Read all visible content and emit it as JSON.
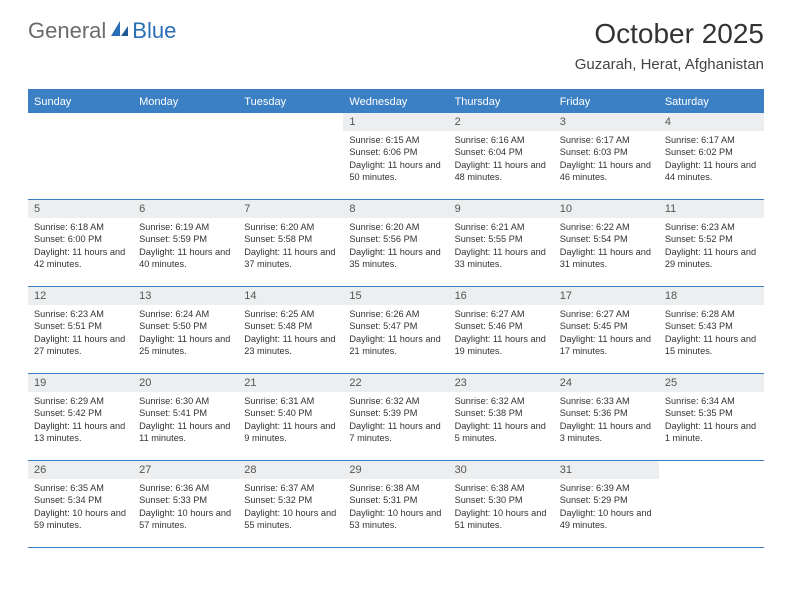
{
  "logo": {
    "text1": "General",
    "text2": "Blue"
  },
  "title": "October 2025",
  "location": "Guzarah, Herat, Afghanistan",
  "colors": {
    "header_bar": "#3b7fc4",
    "daynum_bg": "#eceeef",
    "text": "#333333",
    "logo_gray": "#6b6b6b",
    "logo_blue": "#2a6fb5"
  },
  "weekdays": [
    "Sunday",
    "Monday",
    "Tuesday",
    "Wednesday",
    "Thursday",
    "Friday",
    "Saturday"
  ],
  "weeks": [
    [
      {
        "empty": true
      },
      {
        "empty": true
      },
      {
        "empty": true
      },
      {
        "num": "1",
        "sunrise": "6:15 AM",
        "sunset": "6:06 PM",
        "daylight": "11 hours and 50 minutes."
      },
      {
        "num": "2",
        "sunrise": "6:16 AM",
        "sunset": "6:04 PM",
        "daylight": "11 hours and 48 minutes."
      },
      {
        "num": "3",
        "sunrise": "6:17 AM",
        "sunset": "6:03 PM",
        "daylight": "11 hours and 46 minutes."
      },
      {
        "num": "4",
        "sunrise": "6:17 AM",
        "sunset": "6:02 PM",
        "daylight": "11 hours and 44 minutes."
      }
    ],
    [
      {
        "num": "5",
        "sunrise": "6:18 AM",
        "sunset": "6:00 PM",
        "daylight": "11 hours and 42 minutes."
      },
      {
        "num": "6",
        "sunrise": "6:19 AM",
        "sunset": "5:59 PM",
        "daylight": "11 hours and 40 minutes."
      },
      {
        "num": "7",
        "sunrise": "6:20 AM",
        "sunset": "5:58 PM",
        "daylight": "11 hours and 37 minutes."
      },
      {
        "num": "8",
        "sunrise": "6:20 AM",
        "sunset": "5:56 PM",
        "daylight": "11 hours and 35 minutes."
      },
      {
        "num": "9",
        "sunrise": "6:21 AM",
        "sunset": "5:55 PM",
        "daylight": "11 hours and 33 minutes."
      },
      {
        "num": "10",
        "sunrise": "6:22 AM",
        "sunset": "5:54 PM",
        "daylight": "11 hours and 31 minutes."
      },
      {
        "num": "11",
        "sunrise": "6:23 AM",
        "sunset": "5:52 PM",
        "daylight": "11 hours and 29 minutes."
      }
    ],
    [
      {
        "num": "12",
        "sunrise": "6:23 AM",
        "sunset": "5:51 PM",
        "daylight": "11 hours and 27 minutes."
      },
      {
        "num": "13",
        "sunrise": "6:24 AM",
        "sunset": "5:50 PM",
        "daylight": "11 hours and 25 minutes."
      },
      {
        "num": "14",
        "sunrise": "6:25 AM",
        "sunset": "5:48 PM",
        "daylight": "11 hours and 23 minutes."
      },
      {
        "num": "15",
        "sunrise": "6:26 AM",
        "sunset": "5:47 PM",
        "daylight": "11 hours and 21 minutes."
      },
      {
        "num": "16",
        "sunrise": "6:27 AM",
        "sunset": "5:46 PM",
        "daylight": "11 hours and 19 minutes."
      },
      {
        "num": "17",
        "sunrise": "6:27 AM",
        "sunset": "5:45 PM",
        "daylight": "11 hours and 17 minutes."
      },
      {
        "num": "18",
        "sunrise": "6:28 AM",
        "sunset": "5:43 PM",
        "daylight": "11 hours and 15 minutes."
      }
    ],
    [
      {
        "num": "19",
        "sunrise": "6:29 AM",
        "sunset": "5:42 PM",
        "daylight": "11 hours and 13 minutes."
      },
      {
        "num": "20",
        "sunrise": "6:30 AM",
        "sunset": "5:41 PM",
        "daylight": "11 hours and 11 minutes."
      },
      {
        "num": "21",
        "sunrise": "6:31 AM",
        "sunset": "5:40 PM",
        "daylight": "11 hours and 9 minutes."
      },
      {
        "num": "22",
        "sunrise": "6:32 AM",
        "sunset": "5:39 PM",
        "daylight": "11 hours and 7 minutes."
      },
      {
        "num": "23",
        "sunrise": "6:32 AM",
        "sunset": "5:38 PM",
        "daylight": "11 hours and 5 minutes."
      },
      {
        "num": "24",
        "sunrise": "6:33 AM",
        "sunset": "5:36 PM",
        "daylight": "11 hours and 3 minutes."
      },
      {
        "num": "25",
        "sunrise": "6:34 AM",
        "sunset": "5:35 PM",
        "daylight": "11 hours and 1 minute."
      }
    ],
    [
      {
        "num": "26",
        "sunrise": "6:35 AM",
        "sunset": "5:34 PM",
        "daylight": "10 hours and 59 minutes."
      },
      {
        "num": "27",
        "sunrise": "6:36 AM",
        "sunset": "5:33 PM",
        "daylight": "10 hours and 57 minutes."
      },
      {
        "num": "28",
        "sunrise": "6:37 AM",
        "sunset": "5:32 PM",
        "daylight": "10 hours and 55 minutes."
      },
      {
        "num": "29",
        "sunrise": "6:38 AM",
        "sunset": "5:31 PM",
        "daylight": "10 hours and 53 minutes."
      },
      {
        "num": "30",
        "sunrise": "6:38 AM",
        "sunset": "5:30 PM",
        "daylight": "10 hours and 51 minutes."
      },
      {
        "num": "31",
        "sunrise": "6:39 AM",
        "sunset": "5:29 PM",
        "daylight": "10 hours and 49 minutes."
      },
      {
        "empty": true
      }
    ]
  ],
  "labels": {
    "sunrise": "Sunrise:",
    "sunset": "Sunset:",
    "daylight": "Daylight:"
  }
}
